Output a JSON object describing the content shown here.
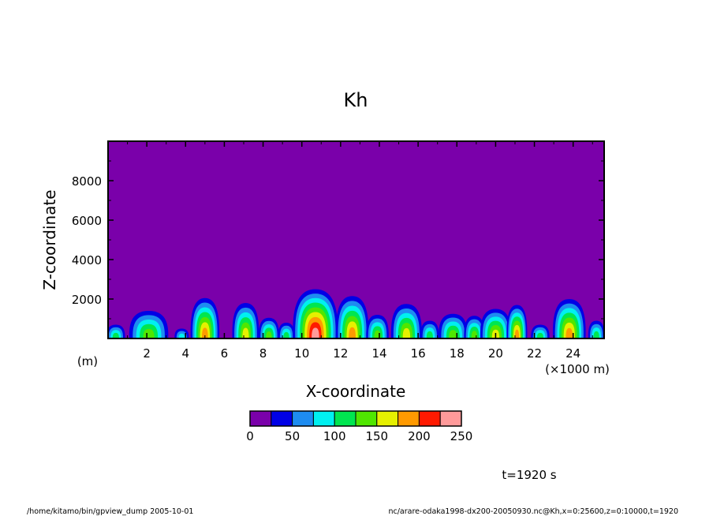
{
  "chart_data": {
    "type": "heatmap",
    "title": "Kh",
    "xlabel": "X-coordinate",
    "ylabel": "Z-coordinate",
    "x_unit": "(×1000 m)",
    "y_unit": "(m)",
    "xlim": [
      0,
      25.6
    ],
    "ylim": [
      0,
      10000
    ],
    "xticks": [
      2,
      4,
      6,
      8,
      10,
      12,
      14,
      16,
      18,
      20,
      22,
      24
    ],
    "yticks": [
      2000,
      4000,
      6000,
      8000
    ],
    "grid": false,
    "colorbar": {
      "levels": [
        0,
        25,
        50,
        75,
        100,
        125,
        150,
        175,
        200,
        225,
        250
      ],
      "tick_labels": [
        "0",
        "50",
        "100",
        "150",
        "200",
        "250"
      ],
      "tick_values": [
        0,
        50,
        100,
        150,
        200,
        250
      ],
      "colors": [
        "#7a00aa",
        "#0000e6",
        "#1e8cf0",
        "#00f0f0",
        "#00e650",
        "#50e600",
        "#e6f000",
        "#ff9a00",
        "#ff1a00",
        "#ff9a9a"
      ]
    },
    "clouds": [
      {
        "x": 0.4,
        "top": 700,
        "width": 0.9,
        "peak": 4
      },
      {
        "x": 2.1,
        "top": 1400,
        "width": 1.9,
        "peak": 5
      },
      {
        "x": 3.8,
        "top": 500,
        "width": 0.7,
        "peak": 3
      },
      {
        "x": 5.0,
        "top": 2050,
        "width": 1.4,
        "peak": 7
      },
      {
        "x": 7.1,
        "top": 1800,
        "width": 1.3,
        "peak": 6
      },
      {
        "x": 8.3,
        "top": 1050,
        "width": 1.0,
        "peak": 5
      },
      {
        "x": 9.2,
        "top": 800,
        "width": 0.8,
        "peak": 4
      },
      {
        "x": 10.7,
        "top": 2500,
        "width": 2.2,
        "peak": 9
      },
      {
        "x": 12.6,
        "top": 2150,
        "width": 1.6,
        "peak": 7
      },
      {
        "x": 13.9,
        "top": 1200,
        "width": 1.1,
        "peak": 5
      },
      {
        "x": 15.4,
        "top": 1750,
        "width": 1.5,
        "peak": 6
      },
      {
        "x": 16.6,
        "top": 900,
        "width": 0.9,
        "peak": 4
      },
      {
        "x": 17.8,
        "top": 1250,
        "width": 1.4,
        "peak": 5
      },
      {
        "x": 18.9,
        "top": 1150,
        "width": 1.0,
        "peak": 5
      },
      {
        "x": 20.0,
        "top": 1500,
        "width": 1.5,
        "peak": 6
      },
      {
        "x": 21.1,
        "top": 1700,
        "width": 1.0,
        "peak": 7
      },
      {
        "x": 22.3,
        "top": 700,
        "width": 0.9,
        "peak": 4
      },
      {
        "x": 23.8,
        "top": 2000,
        "width": 1.6,
        "peak": 7
      },
      {
        "x": 25.2,
        "top": 900,
        "width": 0.8,
        "peak": 4
      }
    ]
  },
  "annotations": {
    "time": "t=1920 s",
    "footer_left": "/home/kitamo/bin/gpview_dump  2005-10-01",
    "footer_right": "nc/arare-odaka1998-dx200-20050930.nc@Kh,x=0:25600,z=0:10000,t=1920"
  }
}
